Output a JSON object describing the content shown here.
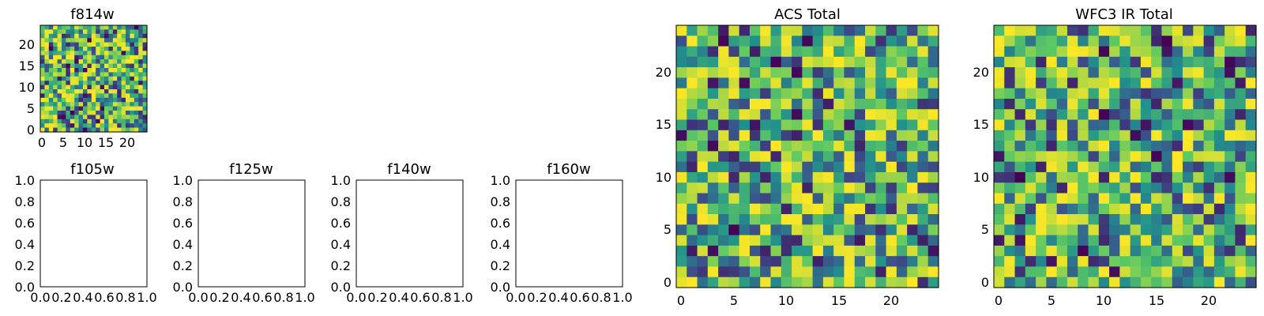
{
  "figure": {
    "colormap": [
      "#440154",
      "#3b528b",
      "#21918c",
      "#5ec962",
      "#fde725"
    ],
    "background": "#ffffff"
  },
  "chart_data": [
    {
      "id": "f814w",
      "type": "heatmap",
      "title": "f814w",
      "grid_size": [
        25,
        25
      ],
      "xlim": [
        -0.5,
        24.5
      ],
      "ylim": [
        -0.5,
        24.5
      ],
      "xticks": [
        0,
        5,
        10,
        15,
        20
      ],
      "xtick_labels": [
        "0",
        "5",
        "10",
        "15",
        "20"
      ],
      "yticks": [
        0,
        5,
        10,
        15,
        20
      ],
      "ytick_labels": [
        "0",
        "5",
        "10",
        "15",
        "20"
      ],
      "colormap": "viridis",
      "values_note_seed": 11
    },
    {
      "id": "f105w",
      "type": "empty",
      "title": "f105w",
      "xlim": [
        0,
        1
      ],
      "ylim": [
        0,
        1
      ],
      "xtick_labels": [
        "0.0",
        "0.2",
        "0.4",
        "0.6",
        "0.8",
        "1.0"
      ],
      "ytick_labels": [
        "0.0",
        "0.2",
        "0.4",
        "0.6",
        "0.8",
        "1.0"
      ]
    },
    {
      "id": "f125w",
      "type": "empty",
      "title": "f125w",
      "xlim": [
        0,
        1
      ],
      "ylim": [
        0,
        1
      ],
      "xtick_labels": [
        "0.0",
        "0.2",
        "0.4",
        "0.6",
        "0.8",
        "1.0"
      ],
      "ytick_labels": [
        "0.0",
        "0.2",
        "0.4",
        "0.6",
        "0.8",
        "1.0"
      ]
    },
    {
      "id": "f140w",
      "type": "empty",
      "title": "f140w",
      "xlim": [
        0,
        1
      ],
      "ylim": [
        0,
        1
      ],
      "xtick_labels": [
        "0.0",
        "0.2",
        "0.4",
        "0.6",
        "0.8",
        "1.0"
      ],
      "ytick_labels": [
        "0.0",
        "0.2",
        "0.4",
        "0.6",
        "0.8",
        "1.0"
      ]
    },
    {
      "id": "f160w",
      "type": "empty",
      "title": "f160w",
      "xlim": [
        0,
        1
      ],
      "ylim": [
        0,
        1
      ],
      "xtick_labels": [
        "0.0",
        "0.2",
        "0.4",
        "0.6",
        "0.8",
        "1.0"
      ],
      "ytick_labels": [
        "0.0",
        "0.2",
        "0.4",
        "0.6",
        "0.8",
        "1.0"
      ]
    },
    {
      "id": "acs-total",
      "type": "heatmap",
      "title": "ACS Total",
      "grid_size": [
        25,
        25
      ],
      "xlim": [
        -0.5,
        24.5
      ],
      "ylim": [
        -0.5,
        24.5
      ],
      "xticks": [
        0,
        5,
        10,
        15,
        20
      ],
      "xtick_labels": [
        "0",
        "5",
        "10",
        "15",
        "20"
      ],
      "yticks": [
        0,
        5,
        10,
        15,
        20
      ],
      "ytick_labels": [
        "0",
        "5",
        "10",
        "15",
        "20"
      ],
      "colormap": "viridis",
      "values_note_seed": 23
    },
    {
      "id": "wfc3-ir-total",
      "type": "heatmap",
      "title": "WFC3 IR Total",
      "grid_size": [
        25,
        25
      ],
      "xlim": [
        -0.5,
        24.5
      ],
      "ylim": [
        -0.5,
        24.5
      ],
      "xticks": [
        0,
        5,
        10,
        15,
        20
      ],
      "xtick_labels": [
        "0",
        "5",
        "10",
        "15",
        "20"
      ],
      "yticks": [
        0,
        5,
        10,
        15,
        20
      ],
      "ytick_labels": [
        "0",
        "5",
        "10",
        "15",
        "20"
      ],
      "colormap": "viridis",
      "values_note_seed": 37
    }
  ]
}
